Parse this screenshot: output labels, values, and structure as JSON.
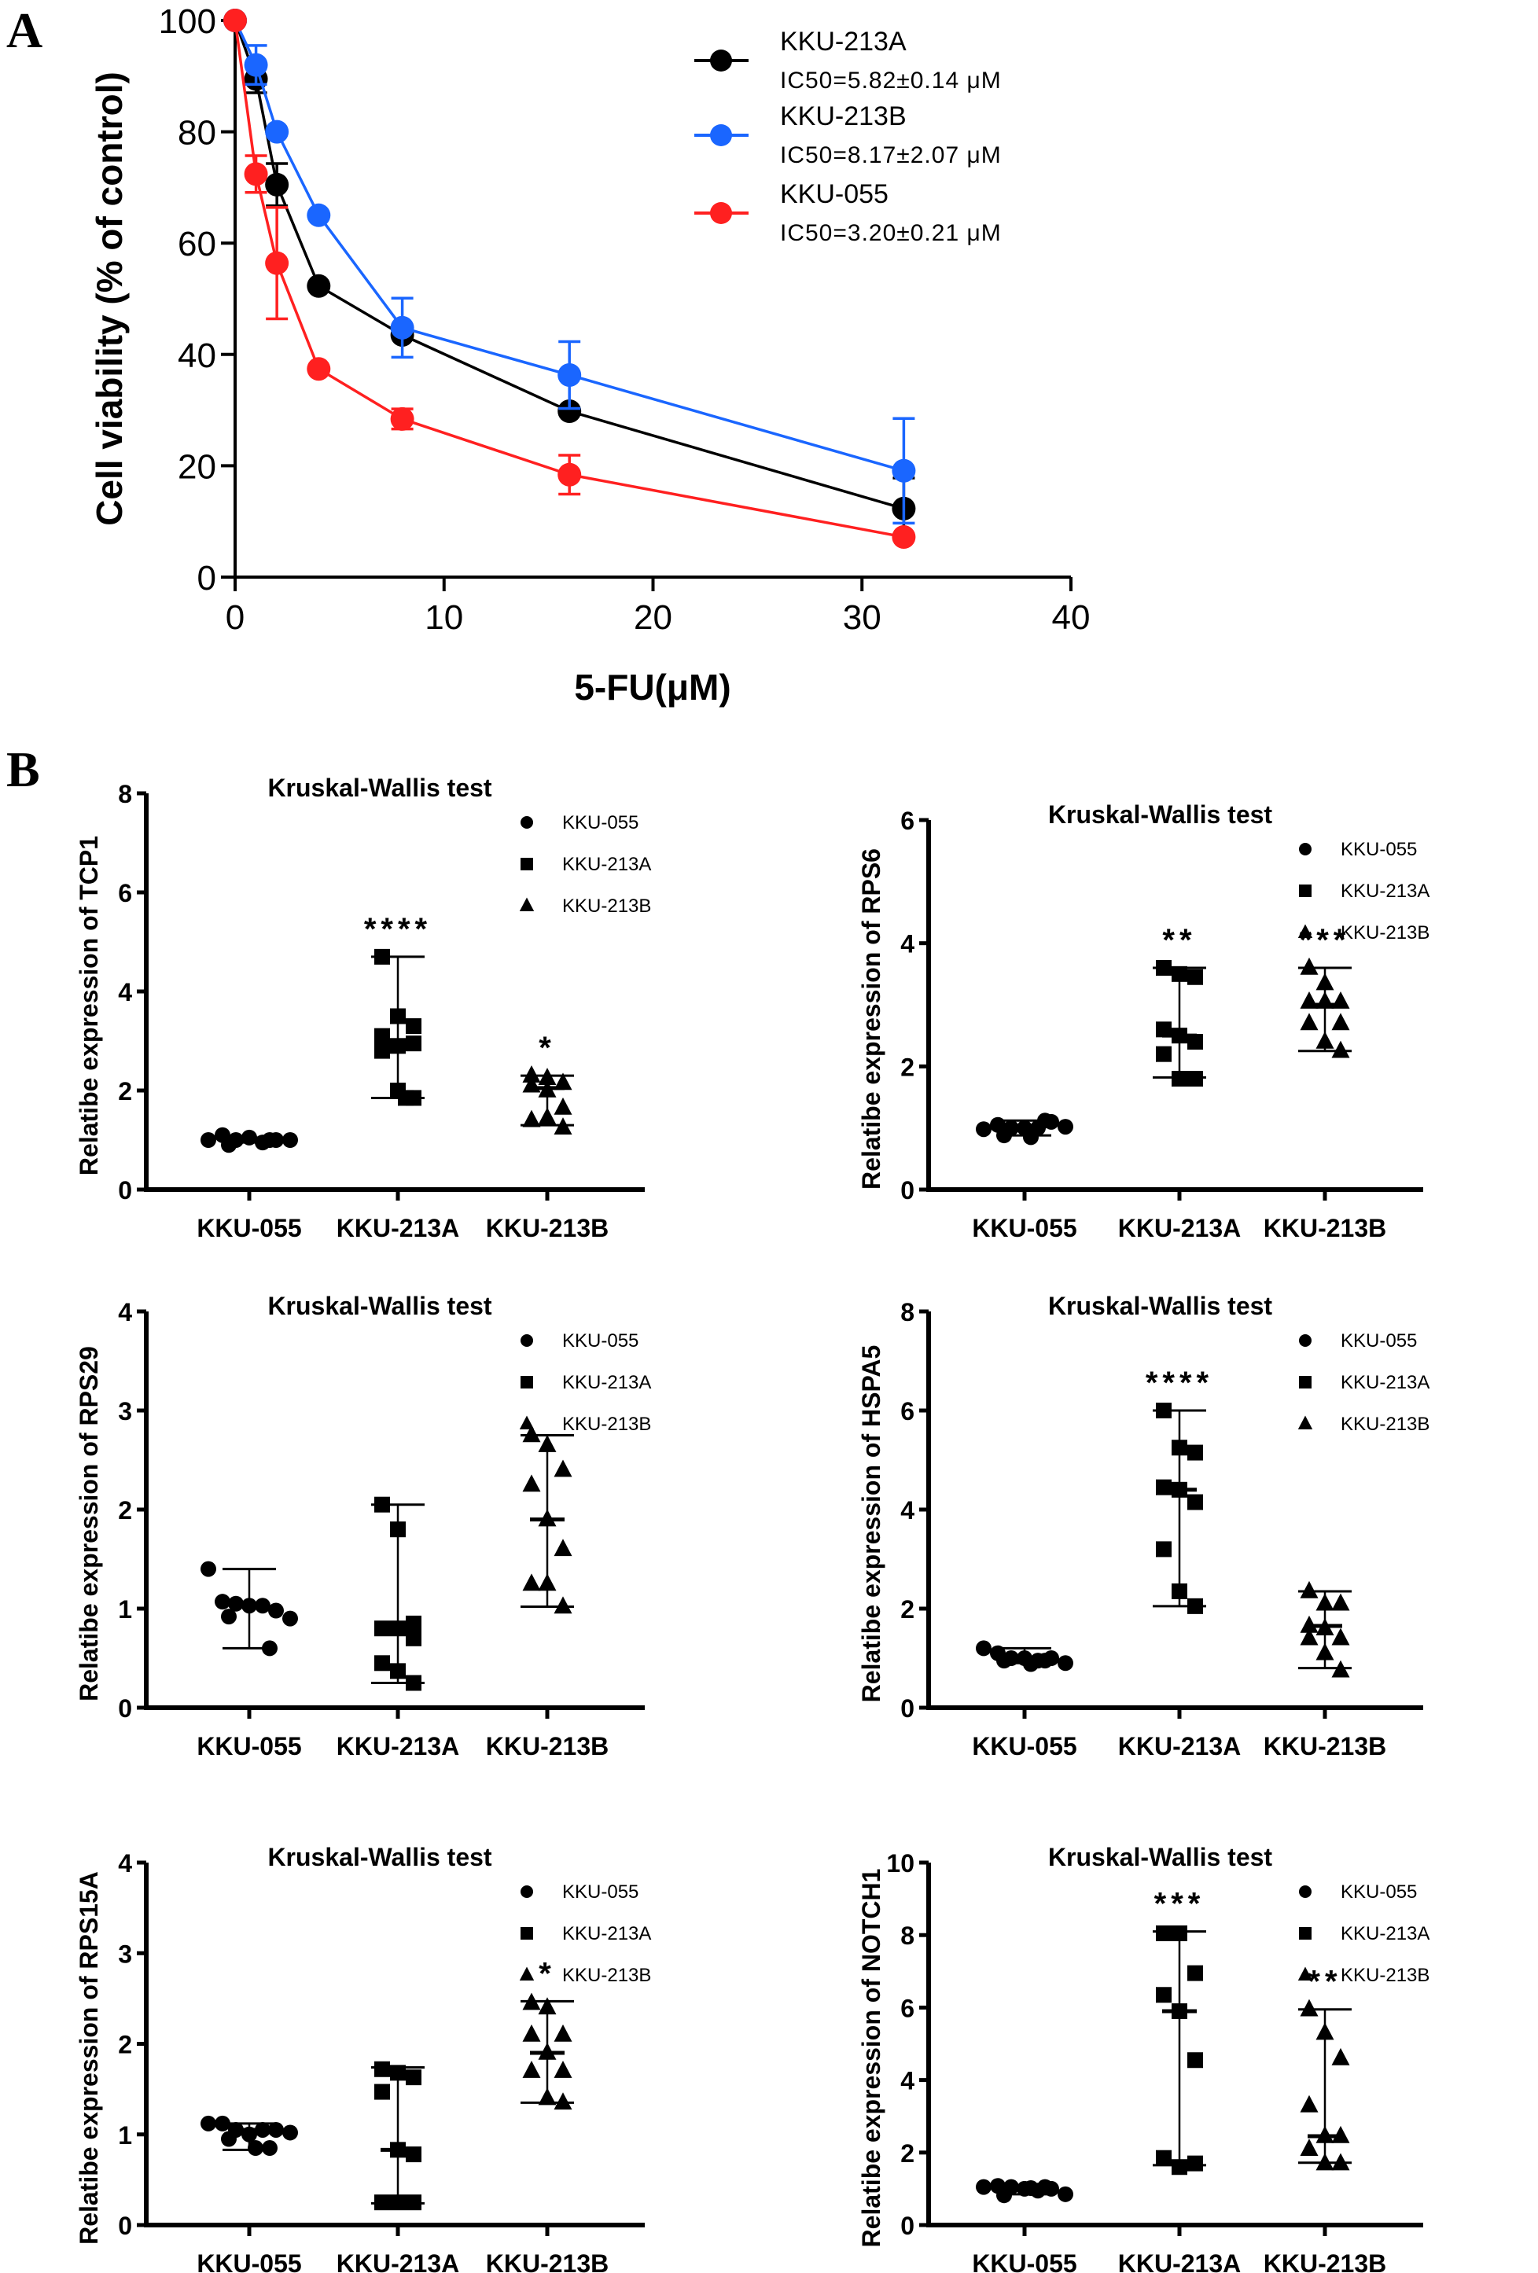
{
  "panel_labels": {
    "a": "A",
    "b": "B"
  },
  "chart_data": [
    {
      "panel": "A",
      "type": "line",
      "title": "",
      "xlabel": "5-FU(μM)",
      "ylabel": "Cell viability (% of control)",
      "xlim": [
        0,
        40
      ],
      "ylim": [
        0,
        100
      ],
      "xticks": [
        0,
        10,
        20,
        30,
        40
      ],
      "yticks": [
        0,
        20,
        40,
        60,
        80,
        100
      ],
      "grid": false,
      "legend_position": "top-right",
      "x": [
        0,
        1,
        2,
        4,
        8,
        16,
        32
      ],
      "series": [
        {
          "name": "KKU-213A",
          "annotation": "IC50=5.82±0.14 μM",
          "color": "#000000",
          "values": [
            100,
            89.5,
            70.5,
            52.3,
            43.5,
            29.8,
            12.3
          ],
          "errors": [
            0,
            2.5,
            3.8,
            0,
            0,
            0,
            5.5
          ]
        },
        {
          "name": "KKU-213B",
          "annotation": "IC50=8.17±2.07 μM",
          "color": "#1a66ff",
          "values": [
            100,
            92.0,
            80.0,
            65.0,
            44.8,
            36.3,
            19.1
          ],
          "errors": [
            0,
            3.5,
            0,
            0,
            5.3,
            6.0,
            9.4
          ]
        },
        {
          "name": "KKU-055",
          "annotation": "IC50=3.20±0.21 μM",
          "color": "#ff2020",
          "values": [
            100,
            72.4,
            56.4,
            37.4,
            28.4,
            18.4,
            7.2
          ],
          "errors": [
            0,
            3.3,
            10.0,
            0,
            1.8,
            3.5,
            0.5
          ]
        }
      ]
    },
    {
      "panel": "B1",
      "type": "scatter",
      "title": "Kruskal-Wallis test",
      "ylabel": "Relatibe expression of TCP1",
      "ylim": [
        0,
        8
      ],
      "yticks": [
        0,
        2,
        4,
        6,
        8
      ],
      "categories": [
        "KKU-055",
        "KKU-213A",
        "KKU-213B"
      ],
      "legend": [
        "KKU-055",
        "KKU-213A",
        "KKU-213B"
      ],
      "legend_position": "top-right",
      "groups": [
        {
          "name": "KKU-055",
          "marker": "circle",
          "points": [
            1.0,
            1.1,
            1.0,
            1.05,
            0.95,
            1.0,
            1.0,
            0.9,
            1.0
          ],
          "median": 1.0,
          "range": [
            0.95,
            1.05
          ],
          "significance": ""
        },
        {
          "name": "KKU-213A",
          "marker": "square",
          "points": [
            4.7,
            3.5,
            3.3,
            3.1,
            2.9,
            2.95,
            2.8,
            2.0,
            1.85,
            1.85
          ],
          "median": 2.95,
          "range": [
            1.85,
            4.7
          ],
          "significance": "****"
        },
        {
          "name": "KKU-213B",
          "marker": "triangle",
          "points": [
            2.3,
            2.25,
            2.15,
            2.1,
            2.0,
            1.65,
            1.4,
            1.45,
            1.25
          ],
          "median": 2.05,
          "range": [
            1.3,
            2.3
          ],
          "significance": "*"
        }
      ]
    },
    {
      "panel": "B2",
      "type": "scatter",
      "title": "Kruskal-Wallis test",
      "ylabel": "Relatibe expression of RPS6",
      "ylim": [
        0,
        6
      ],
      "yticks": [
        0,
        2,
        4,
        6
      ],
      "categories": [
        "KKU-055",
        "KKU-213A",
        "KKU-213B"
      ],
      "legend": [
        "KKU-055",
        "KKU-213A",
        "KKU-213B"
      ],
      "legend_position": "top-right",
      "groups": [
        {
          "name": "KKU-055",
          "marker": "circle",
          "points": [
            0.98,
            1.05,
            1.0,
            1.0,
            1.0,
            1.1,
            1.02,
            0.88,
            1.12,
            0.85
          ],
          "median": 1.0,
          "range": [
            0.88,
            1.12
          ],
          "significance": ""
        },
        {
          "name": "KKU-213A",
          "marker": "square",
          "points": [
            3.6,
            3.5,
            3.45,
            2.6,
            2.5,
            2.4,
            2.2,
            1.8,
            1.8
          ],
          "median": 2.5,
          "range": [
            1.82,
            3.6
          ],
          "significance": "**"
        },
        {
          "name": "KKU-213B",
          "marker": "triangle",
          "points": [
            3.6,
            3.35,
            3.05,
            3.05,
            3.05,
            2.7,
            2.7,
            2.4,
            2.25
          ],
          "median": 3.0,
          "range": [
            2.25,
            3.6
          ],
          "significance": "***"
        }
      ]
    },
    {
      "panel": "B3",
      "type": "scatter",
      "title": "Kruskal-Wallis test",
      "ylabel": "Relatibe expression of RPS29",
      "ylim": [
        0,
        4
      ],
      "yticks": [
        0,
        1,
        2,
        3,
        4
      ],
      "categories": [
        "KKU-055",
        "KKU-213A",
        "KKU-213B"
      ],
      "legend": [
        "KKU-055",
        "KKU-213A",
        "KKU-213B"
      ],
      "legend_position": "top-right",
      "groups": [
        {
          "name": "KKU-055",
          "marker": "circle",
          "points": [
            1.4,
            1.07,
            1.05,
            1.03,
            1.03,
            0.98,
            0.9,
            0.92,
            0.6
          ],
          "median": 1.03,
          "range": [
            0.6,
            1.4
          ],
          "significance": ""
        },
        {
          "name": "KKU-213A",
          "marker": "square",
          "points": [
            2.05,
            1.8,
            0.85,
            0.8,
            0.8,
            0.7,
            0.45,
            0.37,
            0.25
          ],
          "median": 0.8,
          "range": [
            0.25,
            2.05
          ],
          "significance": ""
        },
        {
          "name": "KKU-213B",
          "marker": "triangle",
          "points": [
            2.75,
            2.65,
            2.4,
            2.25,
            1.9,
            1.6,
            1.25,
            1.25,
            1.02
          ],
          "median": 1.9,
          "range": [
            1.02,
            2.75
          ],
          "significance": ""
        }
      ]
    },
    {
      "panel": "B4",
      "type": "scatter",
      "title": "Kruskal-Wallis test",
      "ylabel": "Relatibe expression of HSPA5",
      "ylim": [
        0,
        8
      ],
      "yticks": [
        0,
        2,
        4,
        6,
        8
      ],
      "categories": [
        "KKU-055",
        "KKU-213A",
        "KKU-213B"
      ],
      "legend": [
        "KKU-055",
        "KKU-213A",
        "KKU-213B"
      ],
      "legend_position": "top-right",
      "groups": [
        {
          "name": "KKU-055",
          "marker": "circle",
          "points": [
            1.2,
            1.1,
            1.0,
            1.0,
            0.95,
            1.0,
            0.9,
            0.95,
            0.95,
            0.88
          ],
          "median": 0.95,
          "range": [
            0.9,
            1.2
          ],
          "significance": ""
        },
        {
          "name": "KKU-213A",
          "marker": "square",
          "points": [
            6.0,
            5.25,
            5.15,
            4.45,
            4.4,
            4.15,
            3.2,
            2.35,
            2.05
          ],
          "median": 4.4,
          "range": [
            2.05,
            6.0
          ],
          "significance": "****"
        },
        {
          "name": "KKU-213B",
          "marker": "triangle",
          "points": [
            2.35,
            2.1,
            2.1,
            1.65,
            1.6,
            1.4,
            1.4,
            1.1,
            0.75
          ],
          "median": 1.65,
          "range": [
            0.8,
            2.35
          ],
          "significance": ""
        }
      ]
    },
    {
      "panel": "B5",
      "type": "scatter",
      "title": "Kruskal-Wallis test",
      "ylabel": "Relatibe expression of RPS15A",
      "ylim": [
        0,
        4
      ],
      "yticks": [
        0,
        1,
        2,
        3,
        4
      ],
      "categories": [
        "KKU-055",
        "KKU-213A",
        "KKU-213B"
      ],
      "legend": [
        "KKU-055",
        "KKU-213A",
        "KKU-213B"
      ],
      "legend_position": "top-right",
      "groups": [
        {
          "name": "KKU-055",
          "marker": "circle",
          "points": [
            1.12,
            1.12,
            1.05,
            1.0,
            1.05,
            1.05,
            1.02,
            0.95,
            0.85,
            0.85
          ],
          "median": 1.05,
          "range": [
            0.83,
            1.12
          ],
          "significance": ""
        },
        {
          "name": "KKU-213A",
          "marker": "square",
          "points": [
            1.72,
            1.68,
            1.63,
            1.47,
            0.83,
            0.78,
            0.25,
            0.25,
            0.25
          ],
          "median": 0.83,
          "range": [
            0.24,
            1.74
          ],
          "significance": ""
        },
        {
          "name": "KKU-213B",
          "marker": "triangle",
          "points": [
            2.45,
            2.4,
            2.1,
            2.1,
            1.9,
            1.7,
            1.7,
            1.4,
            1.35
          ],
          "median": 1.9,
          "range": [
            1.35,
            2.47
          ],
          "significance": "*"
        }
      ]
    },
    {
      "panel": "B6",
      "type": "scatter",
      "title": "Kruskal-Wallis test",
      "ylabel": "Relatibe expression of NOTCH1",
      "ylim": [
        0,
        10
      ],
      "yticks": [
        0,
        2,
        4,
        6,
        8,
        10
      ],
      "categories": [
        "KKU-055",
        "KKU-213A",
        "KKU-213B"
      ],
      "legend": [
        "KKU-055",
        "KKU-213A",
        "KKU-213B"
      ],
      "legend_position": "top-right",
      "groups": [
        {
          "name": "KKU-055",
          "marker": "circle",
          "points": [
            1.05,
            1.08,
            1.05,
            1.0,
            0.95,
            1.0,
            0.85,
            0.82,
            1.05,
            1.02
          ],
          "median": 1.0,
          "range": [
            0.85,
            1.08
          ],
          "significance": ""
        },
        {
          "name": "KKU-213A",
          "marker": "square",
          "points": [
            8.05,
            8.05,
            6.95,
            6.35,
            5.9,
            4.55,
            1.85,
            1.6,
            1.7
          ],
          "median": 5.9,
          "range": [
            1.65,
            8.1
          ],
          "significance": "***"
        },
        {
          "name": "KKU-213B",
          "marker": "triangle",
          "points": [
            5.95,
            5.3,
            4.6,
            3.3,
            2.45,
            2.45,
            2.1,
            1.7,
            1.7
          ],
          "median": 2.45,
          "range": [
            1.72,
            5.95
          ],
          "significance": "**"
        }
      ]
    }
  ]
}
